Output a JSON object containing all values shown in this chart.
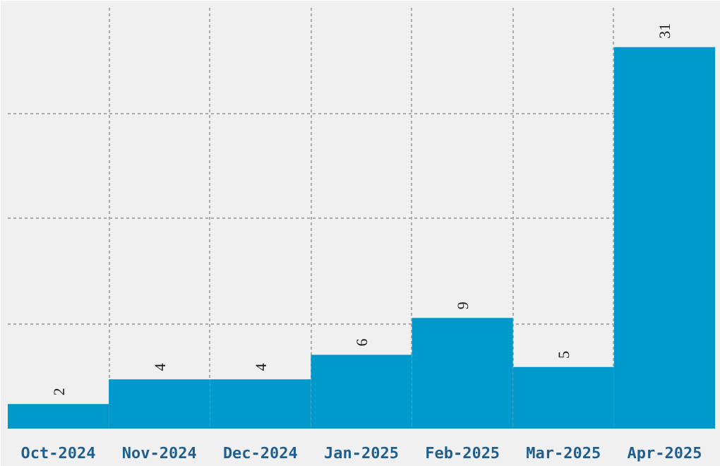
{
  "chart_data": {
    "type": "bar",
    "categories": [
      "Oct-2024",
      "Nov-2024",
      "Dec-2024",
      "Jan-2025",
      "Feb-2025",
      "Mar-2025",
      "Apr-2025"
    ],
    "values": [
      2,
      4,
      4,
      6,
      9,
      5,
      31
    ],
    "color": "#0099cc",
    "data_labels": true,
    "ylim": [
      0,
      34.2
    ],
    "yticks": [
      {
        "value": 8.55,
        "label": null
      },
      {
        "value": 17.1,
        "label": null
      },
      {
        "value": 25.65,
        "label": null
      },
      {
        "value": 34.2,
        "label": null
      }
    ],
    "tick_labels": "x",
    "grid": true
  }
}
